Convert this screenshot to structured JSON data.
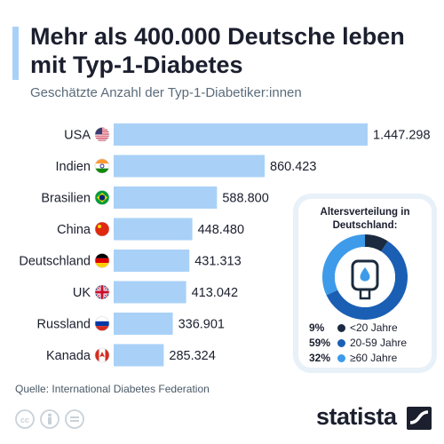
{
  "header": {
    "title": "Mehr als 400.000 Deutsche leben mit Typ-1-Diabetes",
    "subtitle": "Geschätzte Anzahl der Typ-1-Diabetiker:innen"
  },
  "chart_data": [
    {
      "type": "bar",
      "orientation": "horizontal",
      "categories": [
        "USA",
        "Indien",
        "Brasilien",
        "China",
        "Deutschland",
        "UK",
        "Russland",
        "Kanada"
      ],
      "flags": [
        "flag-usa-icon",
        "flag-india-icon",
        "flag-brazil-icon",
        "flag-china-icon",
        "flag-germany-icon",
        "flag-uk-icon",
        "flag-russia-icon",
        "flag-canada-icon"
      ],
      "values": [
        1447298,
        860423,
        588800,
        448480,
        431313,
        413042,
        336901,
        285324
      ],
      "value_labels": [
        "1.447.298",
        "860.423",
        "588.800",
        "448.480",
        "431.313",
        "413.042",
        "336.901",
        "285.324"
      ],
      "bar_color": "#a9d1f7",
      "grid": false
    },
    {
      "type": "pie",
      "style": "donut",
      "title": "Altersverteilung in Deutschland:",
      "slices": [
        {
          "label": "<20 Jahre",
          "value": 9,
          "pct_label": "9%",
          "color": "#1b2a3e"
        },
        {
          "label": "20-59 Jahre",
          "value": 59,
          "pct_label": "59%",
          "color": "#1a5fb4"
        },
        {
          "label": "≥60 Jahre",
          "value": 32,
          "pct_label": "32%",
          "color": "#3d9be9"
        }
      ]
    }
  ],
  "footer": {
    "source": "Quelle: International Diabetes Federation",
    "brand": "statista"
  },
  "colors": {
    "accent": "#a9d1f7",
    "title": "#1b1f2e"
  },
  "icons": [
    "cc-icon",
    "by-icon",
    "nd-icon",
    "statista-logo-icon",
    "glucose-meter-icon"
  ]
}
